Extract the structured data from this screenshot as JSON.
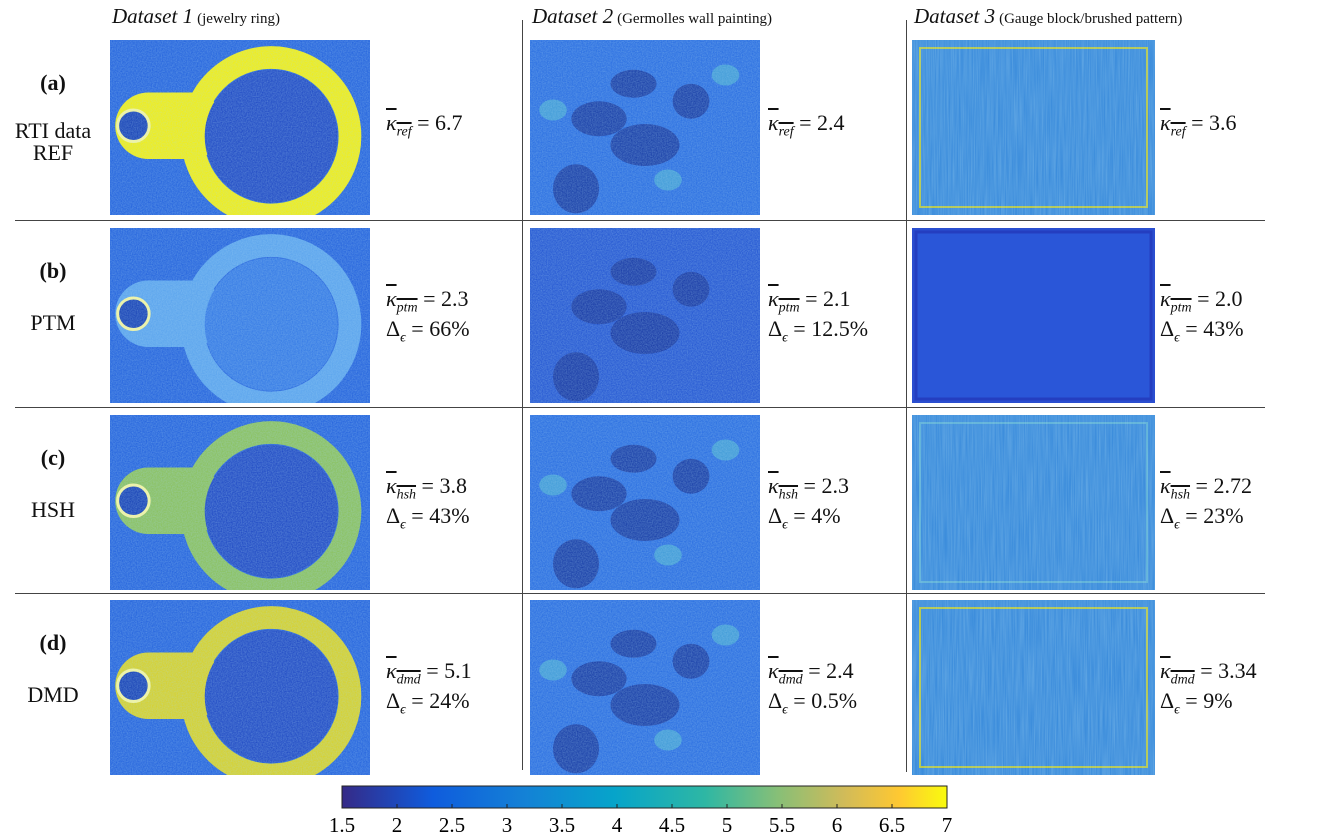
{
  "columns": [
    {
      "title": "Dataset 1",
      "subtitle": "(jewelry ring)"
    },
    {
      "title": "Dataset 2",
      "subtitle": "(Germolles wall painting)"
    },
    {
      "title": "Dataset 3",
      "subtitle": "(Gauge block/brushed pattern)"
    }
  ],
  "kappa_symbol": "κ",
  "delta_symbol": "Δ",
  "delta_sub": "ϵ",
  "equals": "=",
  "rows": [
    {
      "label": "(a)",
      "method": [
        "RTI data",
        "REF"
      ],
      "cells": [
        {
          "kappa_sub": "ref",
          "kappa": "6.7"
        },
        {
          "kappa_sub": "ref",
          "kappa": "2.4"
        },
        {
          "kappa_sub": "ref",
          "kappa": "3.6"
        }
      ]
    },
    {
      "label": "(b)",
      "method": [
        "PTM"
      ],
      "cells": [
        {
          "kappa_sub": "ptm",
          "kappa": "2.3",
          "delta": "66%"
        },
        {
          "kappa_sub": "ptm",
          "kappa": "2.1",
          "delta": "12.5%"
        },
        {
          "kappa_sub": "ptm",
          "kappa": "2.0",
          "delta": "43%"
        }
      ]
    },
    {
      "label": "(c)",
      "method": [
        "HSH"
      ],
      "cells": [
        {
          "kappa_sub": "hsh",
          "kappa": "3.8",
          "delta": "43%"
        },
        {
          "kappa_sub": "hsh",
          "kappa": "2.3",
          "delta": "4%"
        },
        {
          "kappa_sub": "hsh",
          "kappa": "2.72",
          "delta": "23%"
        }
      ]
    },
    {
      "label": "(d)",
      "method": [
        "DMD"
      ],
      "cells": [
        {
          "kappa_sub": "dmd",
          "kappa": "5.1",
          "delta": "24%"
        },
        {
          "kappa_sub": "dmd",
          "kappa": "2.4",
          "delta": "0.5%"
        },
        {
          "kappa_sub": "dmd",
          "kappa": "3.34",
          "delta": "9%"
        }
      ]
    }
  ],
  "colorbar": {
    "range": [
      1.5,
      7
    ],
    "ticks": [
      1.5,
      2,
      2.5,
      3,
      3.5,
      4,
      4.5,
      5,
      5.5,
      6,
      6.5,
      7
    ]
  }
}
